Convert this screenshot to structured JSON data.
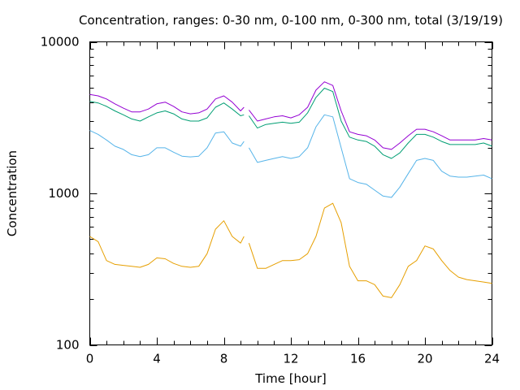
{
  "chart_data": {
    "type": "line",
    "title": "Concentration, ranges: 0-30 nm, 0-100 nm, 0-300 nm, total (3/19/19)",
    "xlabel": "Time [hour]",
    "ylabel": "Concentration",
    "xlim": [
      0,
      24
    ],
    "ylim": [
      100,
      10000
    ],
    "yscale": "log",
    "grid": false,
    "legend": "none",
    "x_ticks": [
      {
        "value": 0,
        "label": "0"
      },
      {
        "value": 4,
        "label": "4"
      },
      {
        "value": 8,
        "label": "8"
      },
      {
        "value": 12,
        "label": "12"
      },
      {
        "value": 16,
        "label": "16"
      },
      {
        "value": 20,
        "label": "20"
      },
      {
        "value": 24,
        "label": "24"
      }
    ],
    "y_ticks": [
      {
        "value": 100,
        "label": "100"
      },
      {
        "value": 1000,
        "label": "1000"
      },
      {
        "value": 10000,
        "label": "10000"
      }
    ],
    "gap": [
      9.2,
      9.5
    ],
    "x": [
      0,
      0.5,
      1,
      1.5,
      2,
      2.5,
      3,
      3.5,
      4,
      4.5,
      5,
      5.5,
      6,
      6.5,
      7,
      7.5,
      8,
      8.5,
      9,
      9.2,
      9.5,
      10,
      10.5,
      11,
      11.5,
      12,
      12.5,
      13,
      13.5,
      14,
      14.5,
      15,
      15.5,
      16,
      16.5,
      17,
      17.5,
      18,
      18.5,
      19,
      19.5,
      20,
      20.5,
      21,
      21.5,
      22,
      22.5,
      23,
      23.5,
      24
    ],
    "series": [
      {
        "color": "#e69f00",
        "values": [
          520,
          480,
          360,
          340,
          335,
          330,
          325,
          340,
          375,
          370,
          345,
          330,
          325,
          330,
          400,
          580,
          660,
          520,
          470,
          520,
          470,
          320,
          320,
          340,
          360,
          360,
          365,
          400,
          520,
          800,
          860,
          640,
          330,
          265,
          265,
          250,
          210,
          205,
          250,
          330,
          360,
          450,
          430,
          360,
          310,
          280,
          270,
          265,
          260,
          255
        ]
      },
      {
        "color": "#56b4e9",
        "values": [
          2600,
          2450,
          2250,
          2050,
          1950,
          1800,
          1750,
          1800,
          2000,
          2000,
          1870,
          1760,
          1740,
          1760,
          2000,
          2500,
          2550,
          2150,
          2050,
          2200,
          2000,
          1600,
          1650,
          1700,
          1750,
          1700,
          1750,
          2000,
          2750,
          3300,
          3200,
          2000,
          1250,
          1180,
          1150,
          1050,
          960,
          940,
          1100,
          1350,
          1650,
          1700,
          1650,
          1400,
          1300,
          1280,
          1280,
          1300,
          1320,
          1250
        ]
      },
      {
        "color": "#009e73",
        "values": [
          4050,
          3950,
          3750,
          3500,
          3300,
          3100,
          3000,
          3200,
          3400,
          3500,
          3350,
          3100,
          3000,
          3000,
          3150,
          3700,
          3950,
          3600,
          3250,
          3300,
          3250,
          2700,
          2850,
          2900,
          2950,
          2900,
          2950,
          3400,
          4300,
          4950,
          4700,
          3000,
          2350,
          2250,
          2200,
          2050,
          1800,
          1700,
          1850,
          2150,
          2450,
          2450,
          2350,
          2200,
          2100,
          2100,
          2100,
          2100,
          2150,
          2050
        ]
      },
      {
        "color": "#9400d3",
        "values": [
          4500,
          4400,
          4200,
          3900,
          3650,
          3450,
          3450,
          3600,
          3900,
          4000,
          3750,
          3450,
          3350,
          3400,
          3600,
          4200,
          4400,
          4000,
          3500,
          3700,
          3550,
          3000,
          3100,
          3200,
          3250,
          3150,
          3300,
          3700,
          4800,
          5450,
          5150,
          3500,
          2550,
          2450,
          2400,
          2250,
          2000,
          1950,
          2150,
          2400,
          2650,
          2650,
          2550,
          2400,
          2250,
          2250,
          2250,
          2250,
          2300,
          2250
        ]
      }
    ]
  }
}
